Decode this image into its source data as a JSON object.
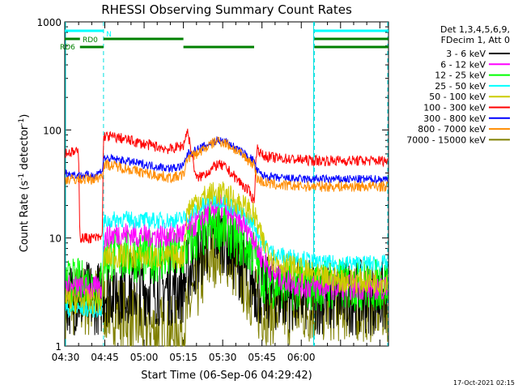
{
  "chart_data": {
    "type": "line",
    "title": "RHESSI Observing Summary Count Rates",
    "xlabel": "Start Time (06-Sep-06 04:29:42)",
    "ylabel_prefix": "Count Rate (s",
    "ylabel_sup": "-1",
    "ylabel_mid": " detector",
    "ylabel_suffix": ")",
    "log_y": true,
    "ylim": [
      1,
      1000
    ],
    "xlim_min": [
      29.7,
      153.3
    ],
    "x_tick_minutes": [
      30,
      45,
      60,
      75,
      90,
      105,
      120
    ],
    "x_tick_labels": [
      "04:30",
      "04:45",
      "05:00",
      "05:15",
      "05:30",
      "05:45",
      "06:00"
    ],
    "y_tick_values": [
      1,
      10,
      100,
      1000
    ],
    "y_tick_labels": [
      "1",
      "10",
      "100",
      "1000"
    ],
    "legend_position": "right",
    "legend_header": [
      "Det 1,3,4,5,6,9,",
      "FDecim 1, Att 0"
    ],
    "series": [
      {
        "name": "3 - 6 keV",
        "color": "#000000",
        "x": [
          30,
          35,
          35.5,
          41,
          44,
          44.5,
          50,
          60,
          70,
          75,
          76.5,
          80,
          85,
          88,
          91,
          95,
          100,
          102,
          103,
          105,
          110,
          120,
          125,
          127,
          130,
          140,
          150,
          153
        ],
        "y": [
          2.8,
          2.8,
          2.8,
          2.8,
          2.8,
          3.3,
          3.5,
          3.4,
          3.4,
          3.5,
          4.8,
          6.5,
          10,
          11.5,
          10,
          6.5,
          4.5,
          4.0,
          3.5,
          3.2,
          3.0,
          2.9,
          2.8,
          2.8,
          2.8,
          2.8,
          2.8,
          2.8
        ]
      },
      {
        "name": "6 - 12 keV",
        "color": "#ff00ff",
        "x": [
          30,
          35,
          35.5,
          41,
          44,
          44.5,
          50,
          60,
          70,
          75,
          76.5,
          80,
          85,
          88,
          91,
          95,
          100,
          102,
          103,
          105,
          110,
          120,
          125,
          127,
          130,
          140,
          150,
          153
        ],
        "y": [
          3.5,
          3.5,
          3.4,
          3.4,
          3.4,
          10,
          11,
          10.5,
          10.5,
          11,
          12,
          13.5,
          18,
          20,
          18.5,
          15,
          12,
          10,
          8,
          6.5,
          4.5,
          3.6,
          3.5,
          3.5,
          3.5,
          3.5,
          3.5,
          3.5
        ]
      },
      {
        "name": "12 - 25 keV",
        "color": "#00ff00",
        "x": [
          30,
          35,
          35.5,
          41,
          44,
          44.5,
          50,
          60,
          70,
          75,
          76.5,
          80,
          85,
          88,
          91,
          95,
          100,
          102,
          103,
          105,
          110,
          120,
          125,
          127,
          130,
          140,
          150,
          153
        ],
        "y": [
          3.7,
          3.7,
          3.6,
          3.6,
          3.6,
          6.5,
          7.0,
          6.7,
          6.7,
          7.0,
          8.5,
          10,
          12.5,
          13.5,
          12.5,
          10,
          8,
          7,
          6.5,
          4.5,
          3.8,
          3.7,
          3.7,
          3.7,
          3.7,
          3.7,
          3.7,
          3.7
        ]
      },
      {
        "name": "25 - 50 keV",
        "color": "#00ffff",
        "x": [
          30,
          35,
          35.5,
          41,
          44,
          44.5,
          50,
          60,
          70,
          75,
          76.5,
          80,
          85,
          88,
          91,
          95,
          100,
          102,
          103,
          105,
          110,
          120,
          125,
          127,
          130,
          140,
          150,
          153
        ],
        "y": [
          2.2,
          2.2,
          2.2,
          2.2,
          2.2,
          14,
          15,
          14.5,
          14.5,
          15,
          16,
          18,
          22,
          23,
          22,
          18,
          15,
          13,
          12,
          9,
          7,
          6.5,
          6,
          5.8,
          5.8,
          5.8,
          5.8,
          5.8
        ]
      },
      {
        "name": "50 - 100 keV",
        "color": "#cccc00",
        "x": [
          30,
          35,
          35.5,
          41,
          44,
          44.5,
          50,
          60,
          70,
          75,
          76.5,
          80,
          85,
          88,
          91,
          95,
          100,
          102,
          103,
          105,
          110,
          120,
          125,
          127,
          130,
          140,
          150,
          153
        ],
        "y": [
          2.6,
          2.6,
          2.6,
          2.6,
          2.6,
          6.5,
          6.8,
          6.6,
          6.6,
          6.8,
          18,
          22,
          25,
          26,
          25,
          22,
          18,
          16,
          14,
          9.5,
          6,
          5,
          4.5,
          4.3,
          4.2,
          4.0,
          4.0,
          4.0
        ]
      },
      {
        "name": "100 - 300 keV",
        "color": "#ff0000",
        "x": [
          30,
          35,
          35.5,
          41,
          44,
          44.5,
          50,
          60,
          70,
          75,
          76.5,
          80,
          85,
          88,
          91,
          95,
          100,
          102,
          103,
          105,
          110,
          120,
          125,
          127,
          130,
          140,
          150,
          153
        ],
        "y": [
          62,
          62,
          10,
          10,
          10,
          88,
          85,
          74,
          66,
          72,
          100,
          35,
          42,
          48,
          45,
          36,
          27,
          22,
          70,
          58,
          55,
          53,
          52,
          52,
          52,
          52,
          52,
          52
        ]
      },
      {
        "name": "300 - 800 keV",
        "color": "#0000ff",
        "x": [
          30,
          35,
          35.5,
          41,
          44,
          44.5,
          50,
          60,
          70,
          75,
          76.5,
          80,
          85,
          88,
          91,
          95,
          100,
          102,
          103,
          105,
          110,
          120,
          125,
          127,
          130,
          140,
          150,
          153
        ],
        "y": [
          40,
          38,
          38,
          38,
          42,
          55,
          53,
          48,
          44,
          46,
          60,
          65,
          75,
          80,
          78,
          68,
          56,
          52,
          42,
          38,
          36,
          35,
          35,
          35,
          35,
          35,
          35,
          35
        ]
      },
      {
        "name": "800 - 7000 keV",
        "color": "#ff8c00",
        "x": [
          30,
          35,
          35.5,
          41,
          44,
          44.5,
          50,
          60,
          70,
          75,
          76.5,
          80,
          85,
          88,
          91,
          95,
          100,
          102,
          103,
          105,
          110,
          120,
          125,
          127,
          130,
          140,
          150,
          153
        ],
        "y": [
          35,
          35,
          35,
          35,
          38,
          48,
          46,
          40,
          36,
          38,
          55,
          60,
          72,
          80,
          76,
          65,
          52,
          48,
          36,
          33,
          31,
          30,
          30,
          30,
          30,
          30,
          30,
          30
        ]
      },
      {
        "name": "7000 - 15000 keV",
        "color": "#808000",
        "x": [
          30,
          35,
          35.5,
          41,
          44,
          44.5,
          50,
          60,
          70,
          75,
          76.5,
          80,
          85,
          88,
          91,
          95,
          100,
          102,
          103,
          105,
          110,
          120,
          125,
          127,
          130,
          140,
          150,
          153
        ],
        "y": [
          2.6,
          2.6,
          2.6,
          2.6,
          2.6,
          2.4,
          2.2,
          1.5,
          1.3,
          1.4,
          2.0,
          3.5,
          6.5,
          8.5,
          8.0,
          5.5,
          3.5,
          2.8,
          2.4,
          2.3,
          2.2,
          2.2,
          2.3,
          2.4,
          2.4,
          2.4,
          2.4,
          2.4
        ]
      }
    ],
    "annotations": {
      "flags": [
        {
          "label": "N",
          "color": "#00ffff",
          "segments": [
            [
              29.7,
              44.5
            ],
            [
              125,
              153.3
            ]
          ]
        },
        {
          "label": "RD0",
          "color": "#008000",
          "segments": [
            [
              29.7,
              35.5
            ],
            [
              44.5,
              75
            ],
            [
              125,
              153.3
            ]
          ]
        },
        {
          "label": "RD6",
          "color": "#008000",
          "segments": [
            [
              35.5,
              44.5
            ],
            [
              75,
              102
            ],
            [
              125,
              153.3
            ]
          ]
        }
      ],
      "dashed_verticals_min": [
        44.5,
        125,
        153
      ]
    }
  },
  "footer": {
    "timestamp": "17-Oct-2021 02:15"
  }
}
